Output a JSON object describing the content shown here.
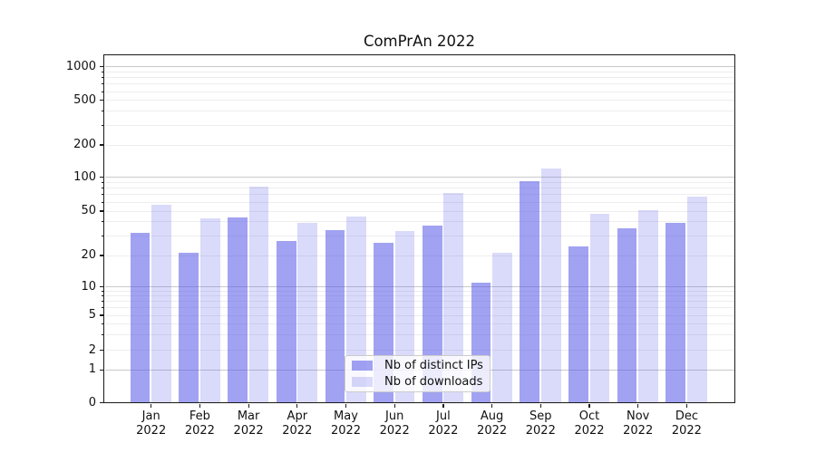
{
  "chart_data": {
    "type": "bar",
    "title": "ComPrAn 2022",
    "categories": [
      "Jan",
      "Feb",
      "Mar",
      "Apr",
      "May",
      "Jun",
      "Jul",
      "Aug",
      "Sep",
      "Oct",
      "Nov",
      "Dec"
    ],
    "category_year": "2022",
    "series": [
      {
        "name": "Nb of distinct IPs",
        "fill": "rgba(86,86,232,0.55)",
        "displayed_color": "#a6a6f2",
        "values": [
          32,
          21,
          44,
          27,
          34,
          26,
          37,
          11,
          92,
          24,
          35,
          39
        ]
      },
      {
        "name": "Nb of downloads",
        "fill": "rgba(86,86,232,0.22)",
        "displayed_color": "#dadafa",
        "values": [
          57,
          43,
          83,
          39,
          45,
          33,
          72,
          21,
          120,
          47,
          51,
          67
        ]
      }
    ],
    "yscale": "symlog",
    "y_ticks": [
      0,
      1,
      2,
      5,
      10,
      20,
      50,
      100,
      200,
      500,
      1000
    ],
    "y_minor_ticks": [
      2,
      3,
      4,
      5,
      6,
      7,
      8,
      9,
      20,
      30,
      40,
      50,
      60,
      70,
      80,
      90,
      200,
      300,
      400,
      500,
      600,
      700,
      800,
      900
    ],
    "y_major_gridlines": [
      1,
      10,
      100,
      1000
    ],
    "ylim": [
      0,
      1300
    ],
    "grid": true,
    "legend": {
      "position": "lower-center-inside",
      "labels": [
        "Nb of distinct IPs",
        "Nb of downloads"
      ]
    }
  }
}
